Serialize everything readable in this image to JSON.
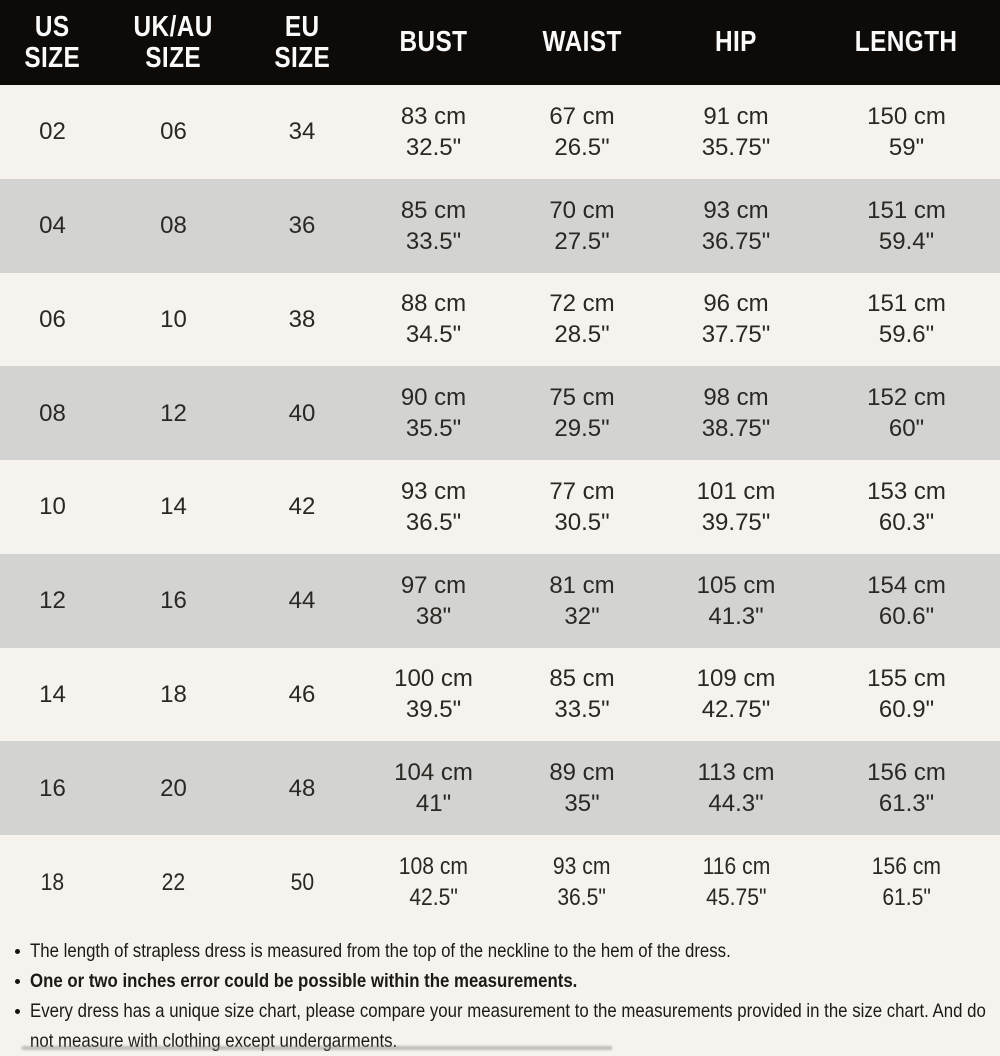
{
  "colors": {
    "header_bg": "#0d0a08",
    "header_text": "#fafafa",
    "row_light": "#f6f3ee",
    "row_dark": "#d3d3d1",
    "body_text": "#2b2823"
  },
  "table": {
    "headers": [
      "US\nSIZE",
      "UK/AU\nSIZE",
      "EU\nSIZE",
      "BUST",
      "WAIST",
      "HIP",
      "LENGTH"
    ],
    "rows": [
      {
        "us": "02",
        "uk_au": "06",
        "eu": "34",
        "bust": [
          "83 cm",
          "32.5\""
        ],
        "waist": [
          "67 cm",
          "26.5\""
        ],
        "hip": [
          "91 cm",
          "35.75\""
        ],
        "length": [
          "150 cm",
          "59\""
        ]
      },
      {
        "us": "04",
        "uk_au": "08",
        "eu": "36",
        "bust": [
          "85 cm",
          "33.5\""
        ],
        "waist": [
          "70 cm",
          "27.5\""
        ],
        "hip": [
          "93 cm",
          "36.75\""
        ],
        "length": [
          "151 cm",
          "59.4\""
        ]
      },
      {
        "us": "06",
        "uk_au": "10",
        "eu": "38",
        "bust": [
          "88 cm",
          "34.5\""
        ],
        "waist": [
          "72 cm",
          "28.5\""
        ],
        "hip": [
          "96 cm",
          "37.75\""
        ],
        "length": [
          "151 cm",
          "59.6\""
        ]
      },
      {
        "us": "08",
        "uk_au": "12",
        "eu": "40",
        "bust": [
          "90 cm",
          "35.5\""
        ],
        "waist": [
          "75 cm",
          "29.5\""
        ],
        "hip": [
          "98 cm",
          "38.75\""
        ],
        "length": [
          "152 cm",
          "60\""
        ]
      },
      {
        "us": "10",
        "uk_au": "14",
        "eu": "42",
        "bust": [
          "93 cm",
          "36.5\""
        ],
        "waist": [
          "77 cm",
          "30.5\""
        ],
        "hip": [
          "101 cm",
          "39.75\""
        ],
        "length": [
          "153 cm",
          "60.3\""
        ]
      },
      {
        "us": "12",
        "uk_au": "16",
        "eu": "44",
        "bust": [
          "97 cm",
          "38\""
        ],
        "waist": [
          "81 cm",
          "32\""
        ],
        "hip": [
          "105 cm",
          "41.3\""
        ],
        "length": [
          "154 cm",
          "60.6\""
        ]
      },
      {
        "us": "14",
        "uk_au": "18",
        "eu": "46",
        "bust": [
          "100 cm",
          "39.5\""
        ],
        "waist": [
          "85 cm",
          "33.5\""
        ],
        "hip": [
          "109 cm",
          "42.75\""
        ],
        "length": [
          "155 cm",
          "60.9\""
        ]
      },
      {
        "us": "16",
        "uk_au": "20",
        "eu": "48",
        "bust": [
          "104 cm",
          "41\""
        ],
        "waist": [
          "89 cm",
          "35\""
        ],
        "hip": [
          "113 cm",
          "44.3\""
        ],
        "length": [
          "156 cm",
          "61.3\""
        ]
      },
      {
        "us": "18",
        "uk_au": "22",
        "eu": "50",
        "bust": [
          "108 cm",
          "42.5\""
        ],
        "waist": [
          "93 cm",
          "36.5\""
        ],
        "hip": [
          "116 cm",
          "45.75\""
        ],
        "length": [
          "156 cm",
          "61.5\""
        ]
      }
    ]
  },
  "notes": [
    {
      "text": "The length of strapless dress is measured from the top of the neckline to the hem of the dress.",
      "bold": false
    },
    {
      "text": "One or two inches error could be possible within the measurements.",
      "bold": true
    },
    {
      "text": "Every dress has a unique size chart, please compare your measurement to the measurements provided in the size chart. And do not measure with clothing except undergarments.",
      "bold": false
    }
  ]
}
